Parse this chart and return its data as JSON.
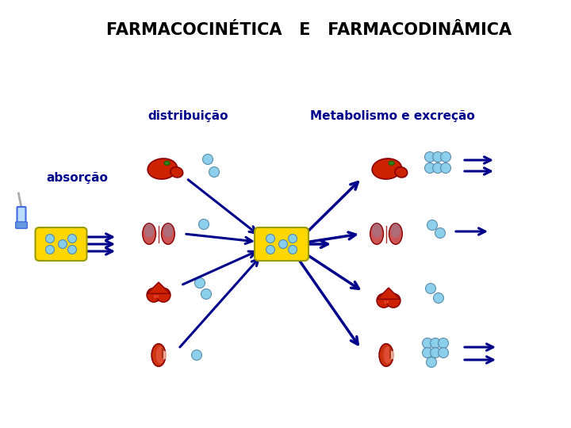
{
  "title": "FARMACOCINÉTICA   E   FARMACODINÂMICA",
  "title_fontsize": 15,
  "title_color": "#000000",
  "label_absorção": "absorção",
  "label_distribuição": "distribuição",
  "label_metabolismo": "Metabolismo e excreção",
  "label_color": "#00008B",
  "label_fontsize": 11,
  "bg_color": "#ffffff",
  "arrow_color": "#00008B",
  "pill_color": "#FFD700",
  "pill_spot_color": "#87CEEB",
  "dot_color": "#87CEEB"
}
